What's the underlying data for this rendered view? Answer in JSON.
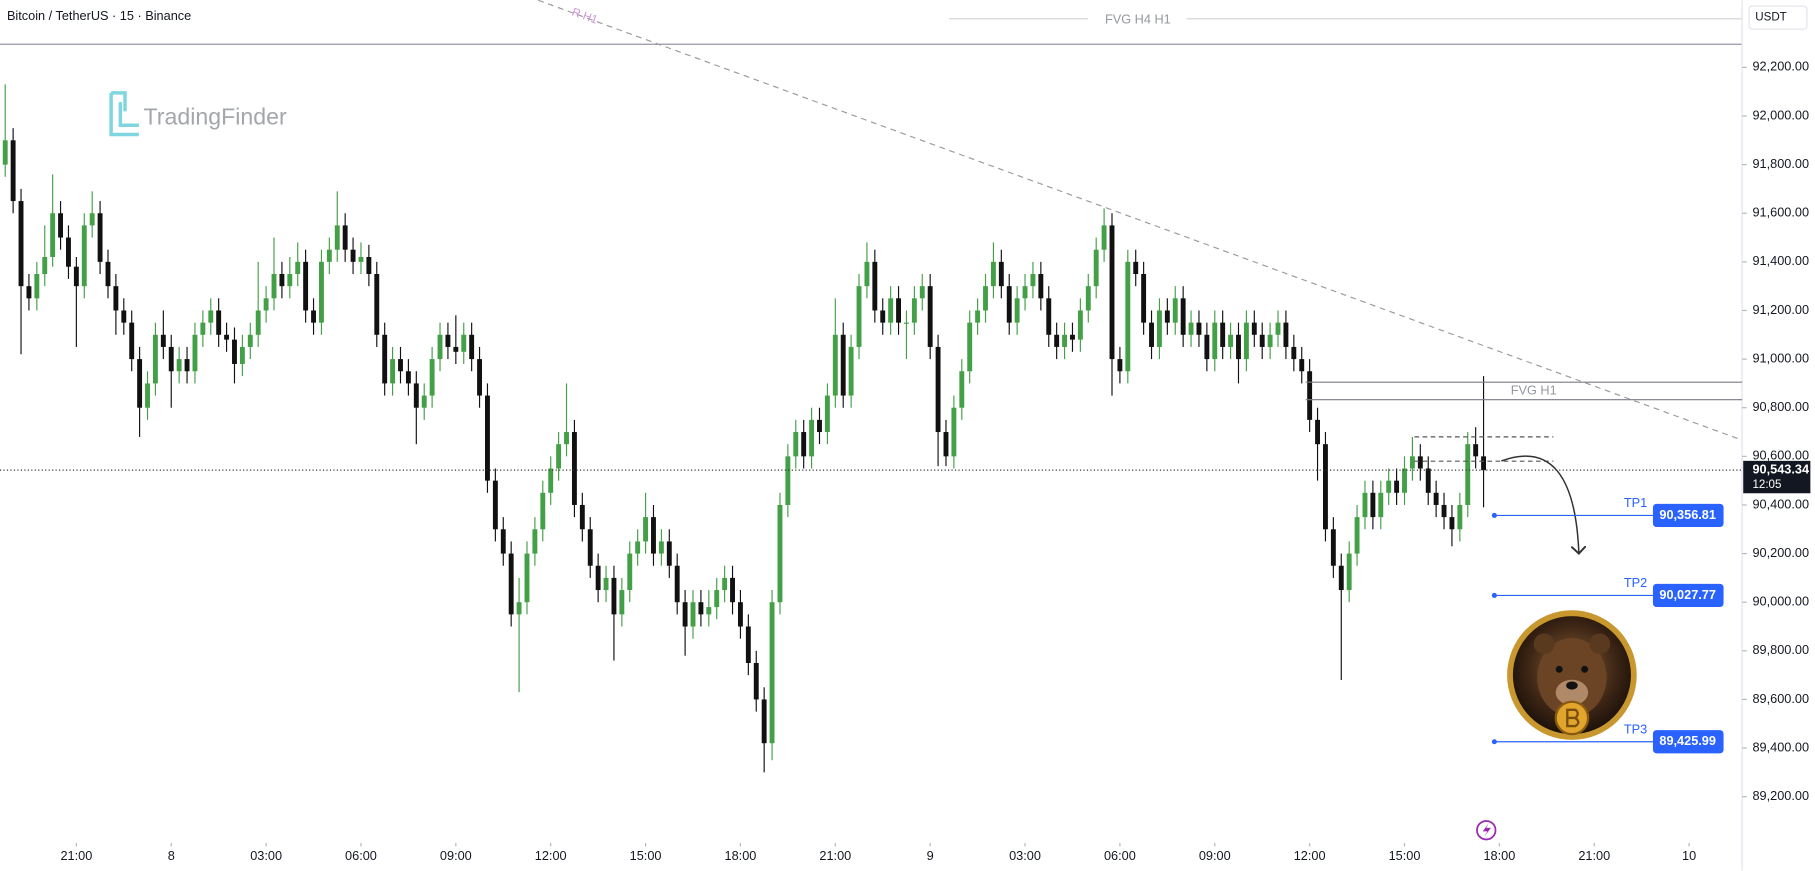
{
  "chart_data": {
    "type": "candlestick",
    "title": "Bitcoin / TetherUS · 15 · Binance",
    "currency": "USDT",
    "brand": "TradingFinder",
    "xlim": [
      -0.66,
      219.7
    ],
    "ylim": [
      89024,
      92476
    ],
    "xticks": [
      {
        "value": 9,
        "label": "21:00"
      },
      {
        "value": 21,
        "label": "8"
      },
      {
        "value": 33,
        "label": "03:00"
      },
      {
        "value": 45,
        "label": "06:00"
      },
      {
        "value": 57,
        "label": "09:00"
      },
      {
        "value": 69,
        "label": "12:00"
      },
      {
        "value": 81,
        "label": "15:00"
      },
      {
        "value": 93,
        "label": "18:00"
      },
      {
        "value": 105,
        "label": "21:00"
      },
      {
        "value": 117,
        "label": "9"
      },
      {
        "value": 129,
        "label": "03:00"
      },
      {
        "value": 141,
        "label": "06:00"
      },
      {
        "value": 153,
        "label": "09:00"
      },
      {
        "value": 165,
        "label": "12:00"
      },
      {
        "value": 177,
        "label": "15:00"
      },
      {
        "value": 189,
        "label": "18:00"
      },
      {
        "value": 201,
        "label": "21:00"
      },
      {
        "value": 213,
        "label": "10"
      }
    ],
    "yticks": [
      {
        "value": 89200,
        "label": "89,200.00"
      },
      {
        "value": 89400,
        "label": "89,400.00"
      },
      {
        "value": 89600,
        "label": "89,600.00"
      },
      {
        "value": 89800,
        "label": "89,800.00"
      },
      {
        "value": 90000,
        "label": "90,000.00"
      },
      {
        "value": 90200,
        "label": "90,200.00"
      },
      {
        "value": 90400,
        "label": "90,400.00"
      },
      {
        "value": 90600,
        "label": "90,600.00"
      },
      {
        "value": 90800,
        "label": "90,800.00"
      },
      {
        "value": 91000,
        "label": "91,000.00"
      },
      {
        "value": 91200,
        "label": "91,200.00"
      },
      {
        "value": 91400,
        "label": "91,400.00"
      },
      {
        "value": 91600,
        "label": "91,600.00"
      },
      {
        "value": 91800,
        "label": "91,800.00"
      },
      {
        "value": 92000,
        "label": "92,000.00"
      },
      {
        "value": 92200,
        "label": "92,200.00"
      }
    ],
    "up_color": "#43a047",
    "down_color": "#111111",
    "open": [
      91800,
      91900,
      91650,
      91300,
      91250,
      91350,
      91420,
      91600,
      91500,
      91380,
      91300,
      91550,
      91600,
      91400,
      91300,
      91200,
      91150,
      91000,
      90800,
      90900,
      91100,
      91050,
      90950,
      91000,
      90950,
      91100,
      91150,
      91200,
      91100,
      91080,
      90980,
      91050,
      91100,
      91200,
      91250,
      91350,
      91300,
      91350,
      91400,
      91200,
      91150,
      91400,
      91450,
      91550,
      91450,
      91400,
      91420,
      91350,
      91100,
      90900,
      91000,
      90950,
      90900,
      90800,
      90850,
      91000,
      91100,
      91050,
      91030,
      91100,
      91000,
      90850,
      90500,
      90300,
      90200,
      89950,
      90000,
      90200,
      90300,
      90450,
      90550,
      90650,
      90700,
      90400,
      90300,
      90150,
      90050,
      90100,
      89950,
      90050,
      90200,
      90250,
      90350,
      90200,
      90250,
      90150,
      90000,
      89900,
      90000,
      89950,
      89980,
      90050,
      90100,
      90000,
      89900,
      89750,
      89600,
      89420,
      90000,
      90400,
      90600,
      90700,
      90600,
      90750,
      90700,
      90850,
      91100,
      90850,
      91050,
      91300,
      91400,
      91200,
      91150,
      91250,
      91150,
      91150,
      91250,
      91300,
      91050,
      90700,
      90600,
      90800,
      90950,
      91150,
      91200,
      91300,
      91400,
      91300,
      91150,
      91250,
      91300,
      91350,
      91250,
      91100,
      91050,
      91100,
      91080,
      91200,
      91300,
      91450,
      91550,
      91000,
      90950,
      91400,
      91350,
      91150,
      91050,
      91200,
      91150,
      91250,
      91100,
      91150,
      91100,
      91000,
      91150,
      91050,
      91100,
      91000,
      91150,
      91100,
      91050,
      91100,
      91150,
      91050,
      91000,
      90950,
      90750,
      90650,
      90300,
      90150,
      90050,
      90200,
      90350,
      90450,
      90350,
      90450,
      90500,
      90450,
      90550,
      90600,
      90550,
      90450,
      90400,
      90350,
      90300,
      90400,
      90650,
      90600
    ],
    "high": [
      92130,
      91950,
      91700,
      91350,
      91400,
      91550,
      91760,
      91650,
      91550,
      91420,
      91600,
      91690,
      91650,
      91450,
      91350,
      91250,
      91200,
      91050,
      90950,
      91150,
      91200,
      91100,
      91050,
      91050,
      91150,
      91200,
      91250,
      91250,
      91150,
      91130,
      91100,
      91150,
      91400,
      91300,
      91500,
      91400,
      91420,
      91480,
      91450,
      91250,
      91450,
      91500,
      91690,
      91600,
      91500,
      91480,
      91470,
      91400,
      91150,
      91050,
      91050,
      91000,
      90950,
      90900,
      91050,
      91150,
      91150,
      91180,
      91150,
      91150,
      91050,
      90900,
      90550,
      90350,
      90250,
      90100,
      90250,
      90350,
      90500,
      90600,
      90700,
      90900,
      90750,
      90450,
      90350,
      90200,
      90150,
      90150,
      90100,
      90250,
      90300,
      90450,
      90400,
      90300,
      90300,
      90200,
      90050,
      90050,
      90050,
      90050,
      90100,
      90150,
      90150,
      90050,
      89950,
      89800,
      89650,
      90050,
      90450,
      90650,
      90750,
      90750,
      90800,
      90800,
      90900,
      91250,
      91150,
      91100,
      91350,
      91480,
      91450,
      91250,
      91300,
      91300,
      91200,
      91300,
      91350,
      91350,
      91100,
      90750,
      90850,
      91000,
      91200,
      91250,
      91350,
      91480,
      91450,
      91350,
      91300,
      91350,
      91400,
      91400,
      91300,
      91150,
      91150,
      91150,
      91250,
      91350,
      91500,
      91620,
      91600,
      91050,
      91450,
      91450,
      91400,
      91200,
      91250,
      91250,
      91300,
      91300,
      91200,
      91200,
      91150,
      91200,
      91200,
      91150,
      91150,
      91200,
      91200,
      91150,
      91150,
      91200,
      91200,
      91100,
      91050,
      91000,
      90800,
      90700,
      90350,
      90200,
      90250,
      90400,
      90500,
      90500,
      90500,
      90550,
      90550,
      90600,
      90680,
      90650,
      90600,
      90500,
      90450,
      90400,
      90450,
      90700,
      90720,
      90930
    ],
    "low": [
      91750,
      91600,
      91020,
      91200,
      91200,
      91300,
      91380,
      91450,
      91330,
      91050,
      91250,
      91500,
      91350,
      91250,
      91100,
      91100,
      90950,
      90680,
      90750,
      90850,
      91000,
      90800,
      90900,
      90900,
      90900,
      91050,
      91100,
      91050,
      91030,
      90900,
      90930,
      91000,
      91050,
      91150,
      91200,
      91250,
      91250,
      91300,
      91150,
      91100,
      91100,
      91350,
      91400,
      91400,
      91350,
      91350,
      91300,
      91050,
      90850,
      90850,
      90900,
      90850,
      90650,
      90750,
      90800,
      90950,
      91000,
      90980,
      90980,
      90950,
      90800,
      90450,
      90250,
      90150,
      89900,
      89630,
      89950,
      90150,
      90250,
      90400,
      90500,
      90600,
      90350,
      90250,
      90100,
      90000,
      90000,
      89760,
      89900,
      90000,
      90150,
      90200,
      90150,
      90150,
      90100,
      89950,
      89780,
      89850,
      89900,
      89900,
      89930,
      90000,
      89950,
      89850,
      89700,
      89550,
      89300,
      89350,
      89950,
      90350,
      90550,
      90550,
      90550,
      90650,
      90650,
      90800,
      90800,
      90800,
      91000,
      91250,
      91150,
      91100,
      91100,
      91100,
      91000,
      91100,
      91200,
      91000,
      90560,
      90560,
      90550,
      90750,
      90900,
      91100,
      91150,
      91250,
      91250,
      91100,
      91100,
      91200,
      91250,
      91200,
      91050,
      91000,
      91000,
      91030,
      91030,
      91150,
      91250,
      91400,
      90850,
      90900,
      90900,
      91300,
      91100,
      91000,
      91000,
      91100,
      91100,
      91050,
      91050,
      91050,
      90950,
      90950,
      91000,
      91000,
      90900,
      90950,
      91050,
      91000,
      91000,
      91050,
      91000,
      90950,
      90900,
      90700,
      90500,
      90250,
      90100,
      89680,
      90000,
      90150,
      90300,
      90300,
      90300,
      90400,
      90400,
      90400,
      90500,
      90500,
      90400,
      90350,
      90300,
      90230,
      90250,
      90350,
      90550,
      90390
    ],
    "close": [
      91900,
      91650,
      91300,
      91250,
      91350,
      91420,
      91600,
      91500,
      91380,
      91300,
      91550,
      91600,
      91400,
      91300,
      91200,
      91150,
      91000,
      90800,
      90900,
      91100,
      91050,
      90950,
      91000,
      90950,
      91100,
      91150,
      91200,
      91100,
      91080,
      90980,
      91050,
      91100,
      91200,
      91250,
      91350,
      91300,
      91350,
      91400,
      91200,
      91150,
      91400,
      91450,
      91550,
      91450,
      91400,
      91420,
      91350,
      91100,
      90900,
      91000,
      90950,
      90900,
      90800,
      90850,
      91000,
      91100,
      91050,
      91030,
      91100,
      91000,
      90850,
      90500,
      90300,
      90200,
      89950,
      90000,
      90200,
      90300,
      90450,
      90550,
      90650,
      90700,
      90400,
      90300,
      90150,
      90050,
      90100,
      89950,
      90050,
      90200,
      90250,
      90350,
      90200,
      90250,
      90150,
      90000,
      89900,
      90000,
      89950,
      89980,
      90050,
      90100,
      90000,
      89900,
      89750,
      89600,
      89420,
      90000,
      90400,
      90600,
      90700,
      90600,
      90750,
      90700,
      90850,
      91100,
      90850,
      91050,
      91300,
      91400,
      91200,
      91150,
      91250,
      91150,
      91150,
      91250,
      91300,
      91050,
      90700,
      90600,
      90800,
      90950,
      91150,
      91200,
      91300,
      91400,
      91300,
      91150,
      91250,
      91300,
      91350,
      91250,
      91100,
      91050,
      91100,
      91080,
      91200,
      91300,
      91450,
      91550,
      91000,
      90950,
      91400,
      91350,
      91150,
      91050,
      91200,
      91150,
      91250,
      91100,
      91150,
      91100,
      91000,
      91150,
      91050,
      91100,
      91000,
      91150,
      91100,
      91050,
      91100,
      91150,
      91050,
      91000,
      90950,
      90750,
      90650,
      90300,
      90150,
      90050,
      90200,
      90350,
      90450,
      90350,
      90450,
      90500,
      90450,
      90550,
      90600,
      90550,
      90450,
      90400,
      90350,
      90300,
      90400,
      90650,
      90600,
      90543
    ],
    "last_price": {
      "value": 90543.34,
      "label": "90,543.34",
      "countdown": "12:05"
    },
    "fvg_h4_h1": {
      "label": "FVG H4 H1"
    },
    "fvg_h1": {
      "label": "FVG H1",
      "top": 90905,
      "bottom": 90833
    },
    "resistance_label": "R H1",
    "levels": [
      90680,
      90580
    ],
    "targets": [
      {
        "label": "TP1",
        "value": 90356.81,
        "price_label": "90,356.81"
      },
      {
        "label": "TP2",
        "value": 90027.77,
        "price_label": "90,027.77"
      },
      {
        "label": "TP3",
        "value": 89425.99,
        "price_label": "89,425.99"
      }
    ]
  }
}
